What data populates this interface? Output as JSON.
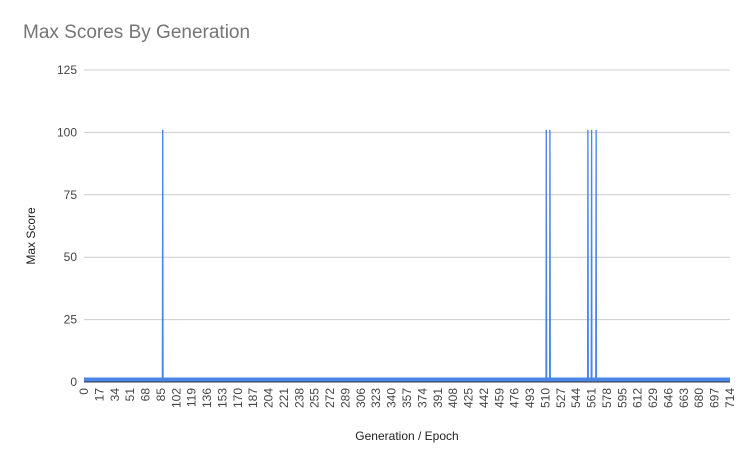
{
  "chart_data": {
    "type": "line",
    "title": "Max Scores By Generation",
    "xlabel": "Generation / Epoch",
    "ylabel": "Max Score",
    "ylim": [
      0,
      125
    ],
    "y_ticks": [
      0,
      25,
      50,
      75,
      100,
      125
    ],
    "x_range": [
      0,
      714
    ],
    "x_tick_labels": [
      "0",
      "17",
      "34",
      "51",
      "68",
      "85",
      "102",
      "119",
      "136",
      "153",
      "170",
      "187",
      "204",
      "221",
      "238",
      "255",
      "272",
      "289",
      "306",
      "323",
      "340",
      "357",
      "374",
      "391",
      "408",
      "425",
      "442",
      "459",
      "476",
      "493",
      "510",
      "527",
      "544",
      "561",
      "578",
      "595",
      "612",
      "629",
      "646",
      "663",
      "680",
      "697",
      "714"
    ],
    "grid": true,
    "legend": "none",
    "series": [
      {
        "baseline": 1,
        "color": "#4a86e8",
        "spikes": [
          {
            "x": 87,
            "y": 101
          },
          {
            "x": 511,
            "y": 101
          },
          {
            "x": 515,
            "y": 101
          },
          {
            "x": 557,
            "y": 101
          },
          {
            "x": 561,
            "y": 101
          },
          {
            "x": 566,
            "y": 101
          }
        ]
      }
    ]
  }
}
